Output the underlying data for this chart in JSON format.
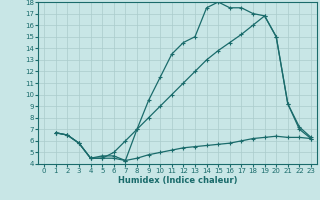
{
  "xlabel": "Humidex (Indice chaleur)",
  "xlim": [
    -0.5,
    23.5
  ],
  "ylim": [
    4,
    18
  ],
  "xticks": [
    0,
    1,
    2,
    3,
    4,
    5,
    6,
    7,
    8,
    9,
    10,
    11,
    12,
    13,
    14,
    15,
    16,
    17,
    18,
    19,
    20,
    21,
    22,
    23
  ],
  "yticks": [
    4,
    5,
    6,
    7,
    8,
    9,
    10,
    11,
    12,
    13,
    14,
    15,
    16,
    17,
    18
  ],
  "background_color": "#c8e6e6",
  "grid_color": "#aacccc",
  "line_color": "#1a6b6b",
  "curve1_x": [
    1,
    2,
    3,
    4,
    5,
    6,
    7,
    8,
    9,
    10,
    11,
    12,
    13,
    14,
    15,
    16,
    17,
    18,
    19,
    20,
    21,
    22,
    23
  ],
  "curve1_y": [
    6.7,
    6.5,
    5.8,
    4.5,
    4.5,
    4.5,
    4.3,
    7.0,
    9.5,
    11.5,
    13.5,
    14.5,
    15.0,
    17.5,
    18.0,
    17.5,
    17.5,
    17.0,
    16.8,
    15.0,
    9.2,
    7.2,
    6.3
  ],
  "curve2_x": [
    1,
    2,
    3,
    4,
    5,
    6,
    7,
    8,
    9,
    10,
    11,
    12,
    13,
    14,
    15,
    16,
    17,
    18,
    19,
    20,
    21,
    22,
    23
  ],
  "curve2_y": [
    6.7,
    6.5,
    5.8,
    4.5,
    4.5,
    5.0,
    6.0,
    7.0,
    8.0,
    9.0,
    10.0,
    11.0,
    12.0,
    13.0,
    13.8,
    14.5,
    15.2,
    16.0,
    16.8,
    15.0,
    9.2,
    7.0,
    6.2
  ],
  "curve3_x": [
    1,
    2,
    3,
    4,
    5,
    6,
    7,
    8,
    9,
    10,
    11,
    12,
    13,
    14,
    15,
    16,
    17,
    18,
    19,
    20,
    21,
    22,
    23
  ],
  "curve3_y": [
    6.7,
    6.5,
    5.8,
    4.5,
    4.7,
    4.7,
    4.3,
    4.5,
    4.8,
    5.0,
    5.2,
    5.4,
    5.5,
    5.6,
    5.7,
    5.8,
    6.0,
    6.2,
    6.3,
    6.4,
    6.3,
    6.3,
    6.2
  ]
}
